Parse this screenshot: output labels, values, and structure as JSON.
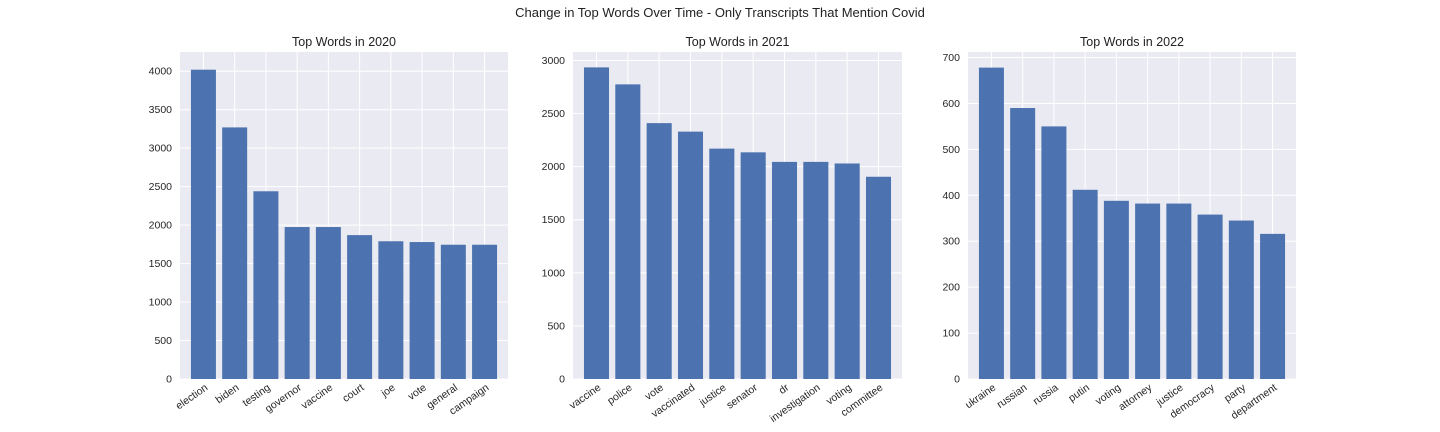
{
  "figure": {
    "suptitle": "Change in Top Words Over Time - Only Transcripts That Mention Covid",
    "background": "#ffffff",
    "axes_background": "#eaeaf2",
    "bar_color": "#4c72b0"
  },
  "chart_data": [
    {
      "type": "bar",
      "title": "Top Words in 2020",
      "xlabel": "",
      "ylabel": "",
      "categories": [
        "election",
        "biden",
        "testing",
        "governor",
        "vaccine",
        "court",
        "joe",
        "vote",
        "general",
        "campaign"
      ],
      "values": [
        4020,
        3270,
        2440,
        1975,
        1975,
        1870,
        1790,
        1780,
        1745,
        1745
      ],
      "ylim": [
        0,
        4250
      ],
      "yticks": [
        0,
        500,
        1000,
        1500,
        2000,
        2500,
        3000,
        3500,
        4000
      ],
      "grid": true
    },
    {
      "type": "bar",
      "title": "Top Words in 2021",
      "xlabel": "",
      "ylabel": "",
      "categories": [
        "vaccine",
        "police",
        "vote",
        "vaccinated",
        "justice",
        "senator",
        "dr",
        "investigation",
        "voting",
        "committee"
      ],
      "values": [
        2935,
        2775,
        2410,
        2330,
        2170,
        2135,
        2045,
        2045,
        2030,
        1905
      ],
      "ylim": [
        0,
        3080
      ],
      "yticks": [
        0,
        500,
        1000,
        1500,
        2000,
        2500,
        3000
      ],
      "grid": true
    },
    {
      "type": "bar",
      "title": "Top Words in 2022",
      "xlabel": "",
      "ylabel": "",
      "categories": [
        "ukraine",
        "russian",
        "russia",
        "putin",
        "voting",
        "attorney",
        "justice",
        "democracy",
        "party",
        "department"
      ],
      "values": [
        678,
        590,
        550,
        412,
        388,
        382,
        382,
        358,
        345,
        316
      ],
      "ylim": [
        0,
        712
      ],
      "yticks": [
        0,
        100,
        200,
        300,
        400,
        500,
        600,
        700
      ],
      "grid": true
    }
  ]
}
